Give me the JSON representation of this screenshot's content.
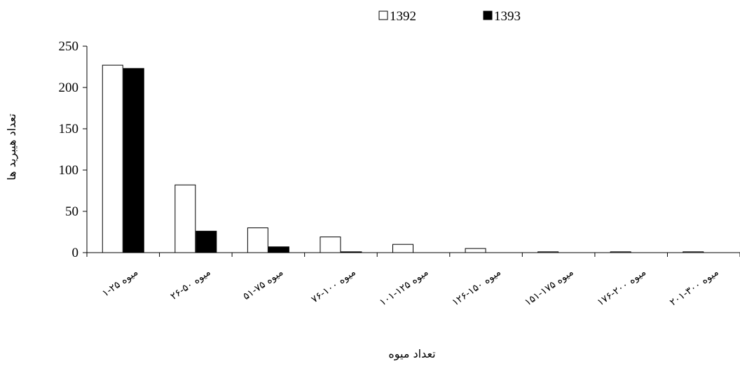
{
  "chart_data": {
    "type": "bar",
    "title": "",
    "xlabel": "تعداد میوه",
    "ylabel": "تعداد هیبرید ها",
    "ylim": [
      0,
      250
    ],
    "yticks": [
      "0",
      "50",
      "100",
      "150",
      "200",
      "250"
    ],
    "categories": [
      "۱-۲۵ میوه",
      "۲۶-۵۰ میوه",
      "۵۱-۷۵ میوه",
      "۷۶-۱۰۰ میوه",
      "۱۰۱-۱۲۵ میوه",
      "۱۲۶-۱۵۰ میوه",
      "۱۵۱-۱۷۵ میوه",
      "۱۷۶-۲۰۰ میوه",
      "۲۰۱-۳۰۰ میوه"
    ],
    "series": [
      {
        "name": "1392",
        "values": [
          227,
          82,
          30,
          19,
          10,
          5,
          1,
          1,
          1
        ],
        "color": "#ffffff"
      },
      {
        "name": "1393",
        "values": [
          223,
          26,
          7,
          1,
          0,
          0,
          0,
          0,
          0
        ],
        "color": "#000000"
      }
    ],
    "grid": false,
    "legend": "top-right"
  }
}
